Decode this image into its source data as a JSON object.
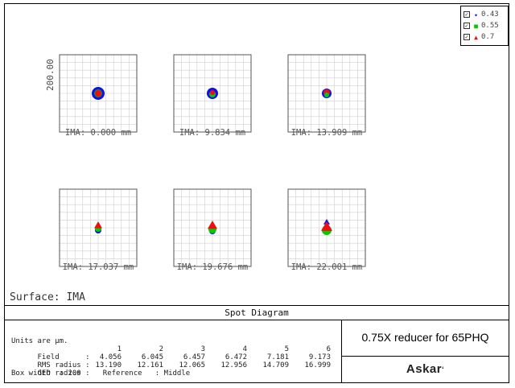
{
  "legend": {
    "items": [
      {
        "label": "0.43",
        "color": "#0000ff",
        "marker": "diamond"
      },
      {
        "label": "0.55",
        "color": "#00cc00",
        "marker": "square"
      },
      {
        "label": "0.7",
        "color": "#ff0000",
        "marker": "triangle"
      }
    ]
  },
  "scale_label": "200.00",
  "fields": [
    {
      "ima_label": "IMA: 0.000 mm"
    },
    {
      "ima_label": "IMA: 9.834 mm"
    },
    {
      "ima_label": "IMA: 13.909 mm"
    },
    {
      "ima_label": "IMA: 17.037 mm"
    },
    {
      "ima_label": "IMA: 19.676 mm"
    },
    {
      "ima_label": "IMA: 22.001 mm"
    }
  ],
  "surface_label": "Surface: IMA",
  "diagram_title": "Spot Diagram",
  "info": {
    "units_line": "Units are µm.",
    "field_label": "Field      :",
    "field_values": [
      "1",
      "2",
      "3",
      "4",
      "5",
      "6"
    ],
    "rms_label": "RMS radius :",
    "rms_values": [
      "4.056",
      "6.045",
      "6.457",
      "6.472",
      "7.181",
      "9.173"
    ],
    "geo_label": "GEO radius :",
    "geo_values": [
      "13.190",
      "12.161",
      "12.065",
      "12.956",
      "14.709",
      "16.999"
    ],
    "box_line": "Box width  : 200     Reference   : Middle"
  },
  "brand": {
    "title": "0.75X reducer for 65PHQ",
    "logo": "Askar"
  }
}
